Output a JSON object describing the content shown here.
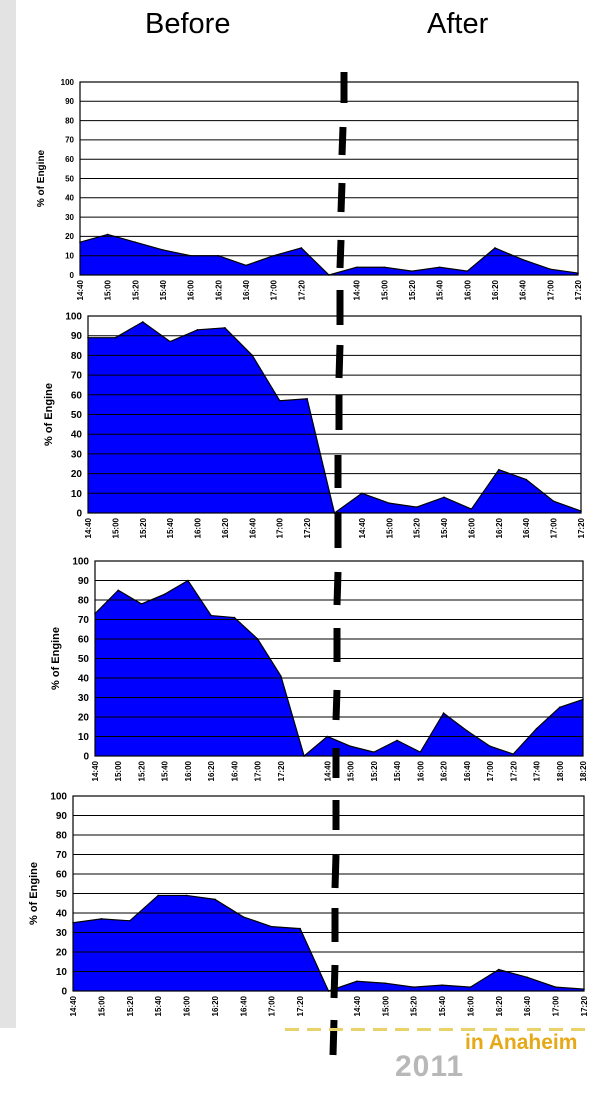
{
  "header": {
    "before_label": "Before",
    "after_label": "After"
  },
  "colors": {
    "fill": "#0000ff",
    "line": "#000000",
    "grid": "#000000"
  },
  "logo": {
    "text": "in Anaheim",
    "year": "2011"
  },
  "chart_data": [
    {
      "type": "area",
      "ylabel": "% of Engine",
      "ylim": [
        0,
        100
      ],
      "yticks": [
        0,
        10,
        20,
        30,
        40,
        50,
        60,
        70,
        80,
        90,
        100
      ],
      "x_labels": [
        "14:40",
        "15:00",
        "15:20",
        "15:40",
        "16:00",
        "16:20",
        "16:40",
        "17:00",
        "17:20",
        "",
        "14:40",
        "15:00",
        "15:20",
        "15:40",
        "16:00",
        "16:20",
        "16:40",
        "17:00",
        "17:20"
      ],
      "values": [
        17,
        21,
        17,
        13,
        10,
        10,
        5,
        10,
        14,
        0,
        4,
        4,
        2,
        4,
        2,
        14,
        8,
        3,
        1
      ]
    },
    {
      "type": "area",
      "ylabel": "% of Engine",
      "ylim": [
        0,
        100
      ],
      "yticks": [
        0,
        10,
        20,
        30,
        40,
        50,
        60,
        70,
        80,
        90,
        100
      ],
      "x_labels": [
        "14:40",
        "15:00",
        "15:20",
        "15:40",
        "16:00",
        "16:20",
        "16:40",
        "17:00",
        "17:20",
        "",
        "14:40",
        "15:00",
        "15:20",
        "15:40",
        "16:00",
        "16:20",
        "16:40",
        "17:00",
        "17:20"
      ],
      "values": [
        89,
        89,
        97,
        87,
        93,
        94,
        80,
        57,
        58,
        0,
        10,
        5,
        3,
        8,
        2,
        22,
        17,
        6,
        1
      ]
    },
    {
      "type": "area",
      "ylabel": "% of Engine",
      "ylim": [
        0,
        100
      ],
      "yticks": [
        0,
        10,
        20,
        30,
        40,
        50,
        60,
        70,
        80,
        90,
        100
      ],
      "x_labels": [
        "14:40",
        "15:00",
        "15:20",
        "15:40",
        "16:00",
        "16:20",
        "16:40",
        "17:00",
        "17:20",
        "",
        "14:40",
        "15:00",
        "15:20",
        "15:40",
        "16:00",
        "16:20",
        "16:40",
        "17:00",
        "17:20",
        "17:40",
        "18:00",
        "18:20"
      ],
      "values": [
        73,
        85,
        78,
        83,
        90,
        72,
        71,
        60,
        41,
        0,
        10,
        5,
        2,
        8,
        2,
        22,
        13,
        5,
        1,
        14,
        25,
        29
      ]
    },
    {
      "type": "area",
      "ylabel": "% of Engine",
      "ylim": [
        0,
        100
      ],
      "yticks": [
        0,
        10,
        20,
        30,
        40,
        50,
        60,
        70,
        80,
        90,
        100
      ],
      "x_labels": [
        "14:40",
        "15:00",
        "15:20",
        "15:40",
        "16:00",
        "16:20",
        "16:40",
        "17:00",
        "17:20",
        "",
        "14:40",
        "15:00",
        "15:20",
        "15:40",
        "16:00",
        "16:20",
        "16:40",
        "17:00",
        "17:20"
      ],
      "values": [
        35,
        37,
        36,
        49,
        49,
        47,
        38,
        33,
        32,
        0,
        5,
        4,
        2,
        3,
        2,
        11,
        7,
        2,
        1
      ]
    }
  ]
}
